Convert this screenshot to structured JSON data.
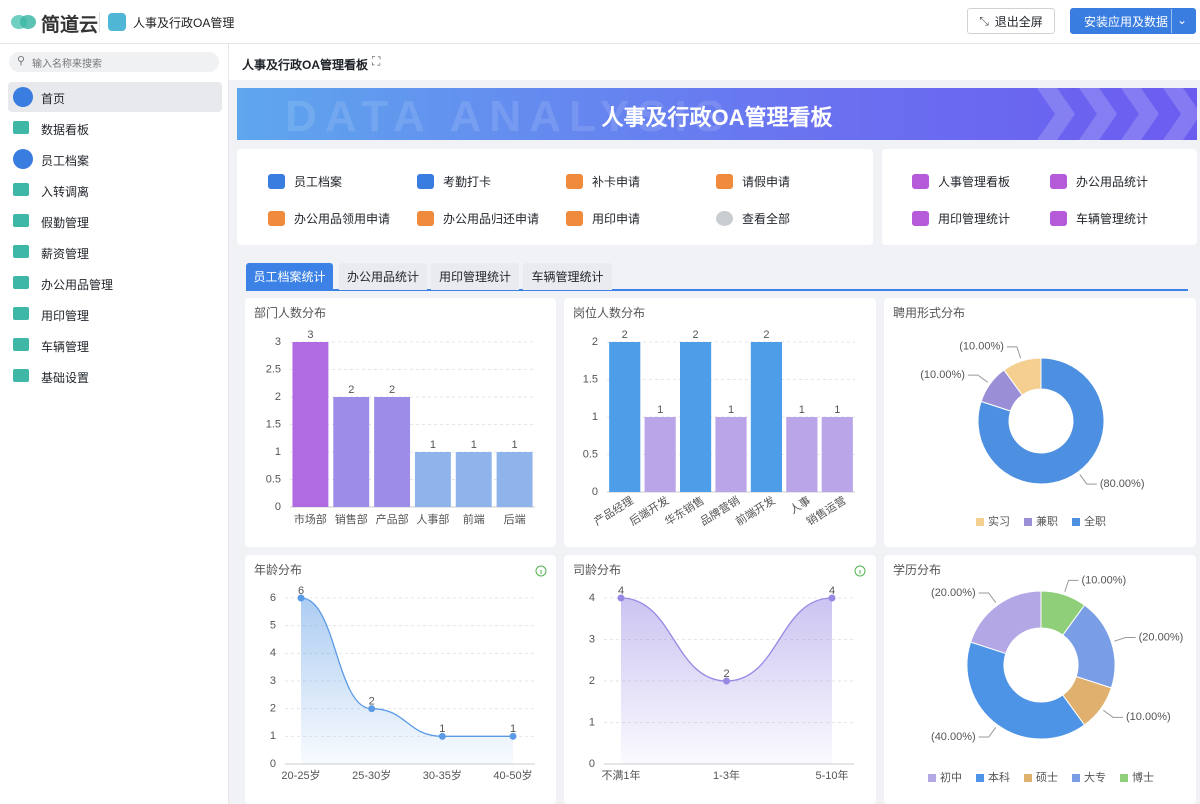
{
  "header": {
    "logo": "简道云",
    "app_name": "人事及行政OA管理",
    "exit_fullscreen": "退出全屏",
    "install": "安装应用及数据"
  },
  "sidebar": {
    "search_placeholder": "输入名称来搜索",
    "items": [
      "首页",
      "数据看板",
      "员工档案",
      "入转调离",
      "假勤管理",
      "薪资管理",
      "办公用品管理",
      "用印管理",
      "车辆管理",
      "基础设置"
    ]
  },
  "page": {
    "title": "人事及行政OA管理看板",
    "banner_title": "人事及行政OA管理看板",
    "banner_watermark": "DATA ANALYSIS",
    "shortcuts": [
      "员工档案",
      "考勤打卡",
      "补卡申请",
      "请假申请",
      "办公用品领用申请",
      "办公用品归还申请",
      "用印申请",
      "查看全部"
    ],
    "reports": [
      "人事管理看板",
      "办公用品统计",
      "用印管理统计",
      "车辆管理统计"
    ],
    "tabs": [
      "员工档案统计",
      "办公用品统计",
      "用印管理统计",
      "车辆管理统计"
    ]
  },
  "chart_data": [
    {
      "type": "bar",
      "title": "部门人数分布",
      "categories": [
        "市场部",
        "销售部",
        "产品部",
        "人事部",
        "前端",
        "后端"
      ],
      "values": [
        3,
        2,
        2,
        1,
        1,
        1
      ],
      "colors": [
        "#b06be2",
        "#9d8ce8",
        "#9d8ce8",
        "#8fb4ec",
        "#8fb4ec",
        "#8fb4ec"
      ],
      "ylim": [
        0,
        3
      ],
      "yticks": [
        0,
        0.5,
        1,
        1.5,
        2,
        2.5,
        3
      ],
      "grid": true
    },
    {
      "type": "bar",
      "title": "岗位人数分布",
      "categories": [
        "产品经理",
        "后端开发",
        "华东销售",
        "品牌营销",
        "前端开发",
        "人事",
        "销售运营"
      ],
      "values": [
        2,
        1,
        2,
        1,
        2,
        1,
        1
      ],
      "colors": [
        "#4e9de8",
        "#b9a5e8",
        "#4e9de8",
        "#b9a5e8",
        "#4e9de8",
        "#b9a5e8",
        "#b9a5e8"
      ],
      "ylim": [
        0,
        2
      ],
      "yticks": [
        0,
        0.5,
        1,
        1.5,
        2
      ],
      "grid": true
    },
    {
      "type": "donut",
      "title": "聘用形式分布",
      "categories": [
        "实习",
        "兼职",
        "全职"
      ],
      "values": [
        10,
        10,
        80
      ],
      "value_labels": [
        "(10.00%)",
        "(10.00%)",
        "(80.00%)"
      ],
      "colors": [
        "#f4cf90",
        "#9a8fd6",
        "#4d8fe0"
      ]
    },
    {
      "type": "line",
      "title": "年龄分布",
      "categories": [
        "20-25岁",
        "25-30岁",
        "30-35岁",
        "40-50岁"
      ],
      "values": [
        6,
        2,
        1,
        1
      ],
      "color": "#5b9be6",
      "ylim": [
        0,
        6
      ],
      "yticks": [
        0,
        1,
        2,
        3,
        4,
        5,
        6
      ],
      "grid": true
    },
    {
      "type": "line",
      "title": "司龄分布",
      "categories": [
        "不满1年",
        "1-3年",
        "5-10年"
      ],
      "values": [
        4,
        2,
        4
      ],
      "color": "#9888e4",
      "ylim": [
        0,
        4
      ],
      "yticks": [
        0,
        1,
        2,
        3,
        4
      ],
      "grid": true
    },
    {
      "type": "donut",
      "title": "学历分布",
      "categories": [
        "初中",
        "本科",
        "硕士",
        "大专",
        "博士"
      ],
      "values": [
        20,
        40,
        10,
        20,
        10
      ],
      "value_labels": [
        "(20.00%)",
        "(40.00%)",
        "(10.00%)",
        "(20.00%)",
        "(10.00%)"
      ],
      "colors": [
        "#b3a7e6",
        "#4d93e6",
        "#dfb06e",
        "#7a9ee6",
        "#8fcf7a"
      ]
    }
  ]
}
